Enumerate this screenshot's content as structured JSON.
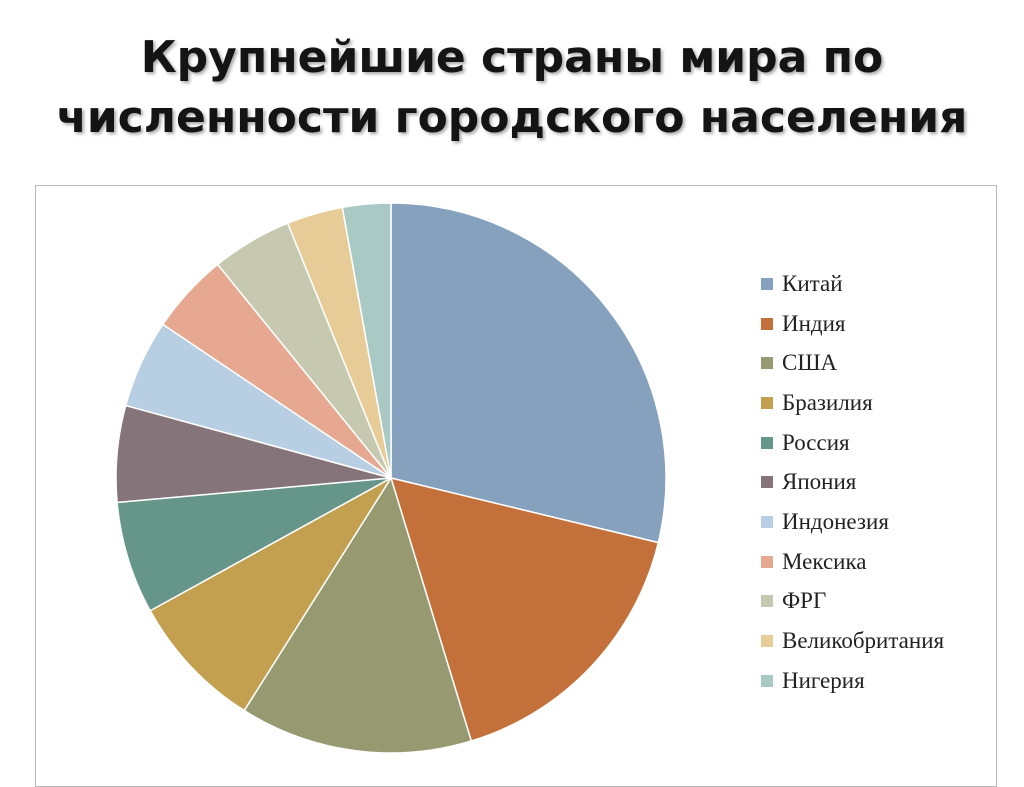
{
  "title": {
    "line1": "Крупнейшие страны мира по",
    "line2": "численности городского населения"
  },
  "chart_data": {
    "type": "pie",
    "title": "Крупнейшие страны мира по численности городского населения",
    "categories": [
      "Китай",
      "Индия",
      "США",
      "Бразилия",
      "Россия",
      "Япония",
      "Индонезия",
      "Мексика",
      "ФРГ",
      "Великобритания",
      "Нигерия"
    ],
    "values": [
      30.5,
      17.5,
      14.5,
      8.5,
      7.0,
      6.0,
      5.5,
      5.0,
      5.0,
      3.5,
      3.0
    ],
    "colors": [
      "#85a1bd",
      "#c4703b",
      "#979a71",
      "#c3a04f",
      "#66958a",
      "#85757a",
      "#b8cee2",
      "#e6a891",
      "#c6c9b0",
      "#e8cc98",
      "#a9c9c5"
    ],
    "legend_position": "right"
  }
}
